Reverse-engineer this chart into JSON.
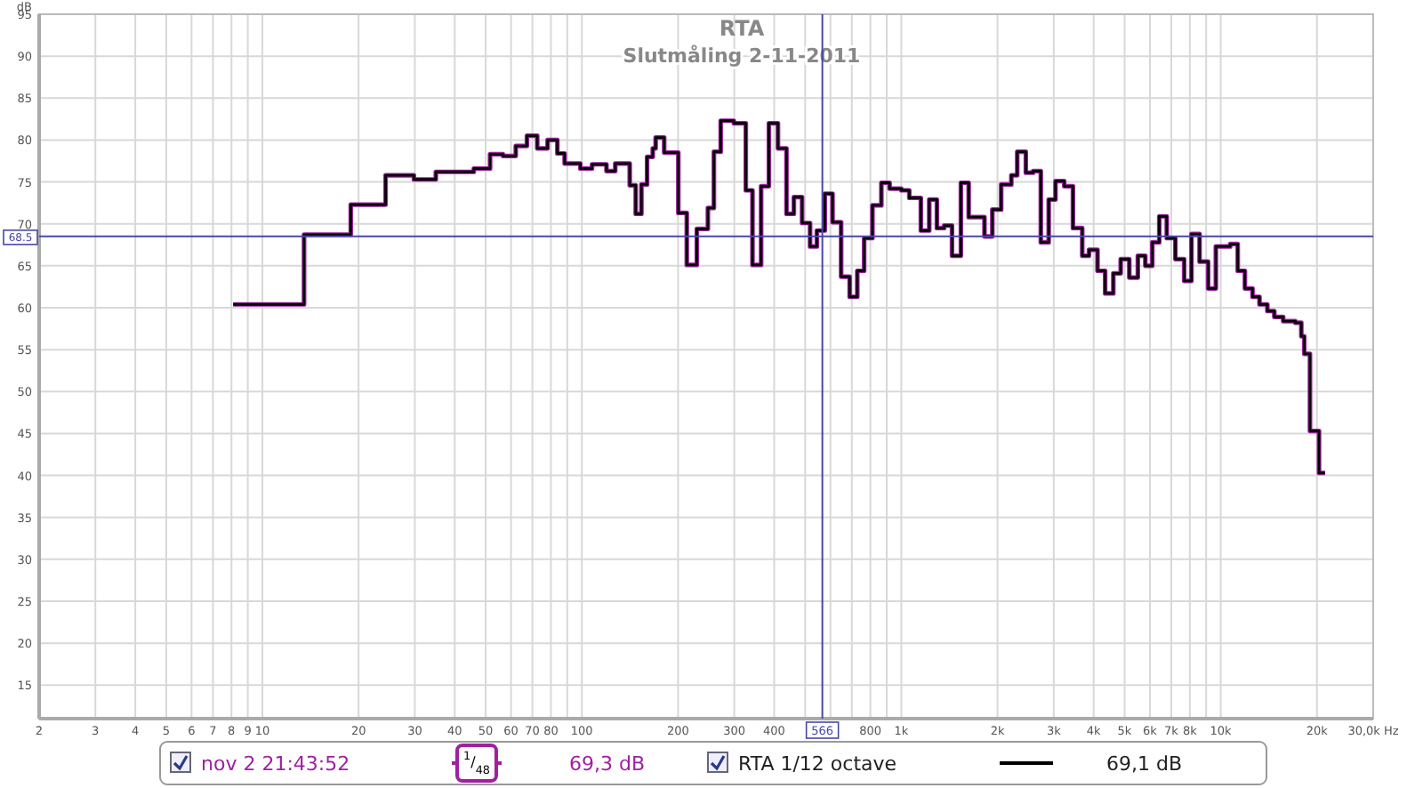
{
  "chart_data": {
    "type": "step",
    "title": "RTA",
    "subtitle": "Slutmåling 2-11-2011",
    "ylabel": "dB",
    "log": "x",
    "grid": true,
    "legend": "bottom",
    "marker": "none",
    "line_style": "solid",
    "xlim": [
      2,
      30000
    ],
    "ylim": [
      11,
      95
    ],
    "xticks": [
      2,
      3,
      4,
      5,
      6,
      7,
      8,
      9,
      10,
      20,
      30,
      40,
      50,
      60,
      70,
      80,
      {
        "value": 90,
        "label": null
      },
      100,
      200,
      300,
      400,
      {
        "value": 500,
        "label": null
      },
      {
        "value": 600,
        "label": null
      },
      {
        "value": 700,
        "label": null
      },
      800,
      {
        "value": 900,
        "label": null
      },
      {
        "value": 1000,
        "label": "1k"
      },
      {
        "value": 2000,
        "label": "2k"
      },
      {
        "value": 3000,
        "label": "3k"
      },
      {
        "value": 4000,
        "label": "4k"
      },
      {
        "value": 5000,
        "label": "5k"
      },
      {
        "value": 6000,
        "label": "6k"
      },
      {
        "value": 7000,
        "label": "7k"
      },
      {
        "value": 8000,
        "label": "8k"
      },
      {
        "value": 9000,
        "label": null
      },
      {
        "value": 10000,
        "label": "10k"
      },
      {
        "value": 20000,
        "label": "20k"
      },
      {
        "value": 30000,
        "label": "30,0k Hz"
      }
    ],
    "yticks": [
      15,
      20,
      25,
      30,
      35,
      40,
      45,
      50,
      55,
      60,
      65,
      70,
      75,
      80,
      85,
      90,
      95
    ],
    "x": [
      8.1,
      13.5,
      18.9,
      24.3,
      29.8,
      34.9,
      45.9,
      51.6,
      56.6,
      62.1,
      67.3,
      72.5,
      78.1,
      83.8,
      88.3,
      98.9,
      107.6,
      119.4,
      127.2,
      141.2,
      147.4,
      153.6,
      160,
      166.7,
      170.2,
      181,
      200.4,
      213,
      229,
      248,
      259,
      272,
      299,
      326,
      342,
      364,
      385,
      411,
      437,
      461,
      489,
      518,
      544,
      576,
      609,
      648,
      689,
      728,
      765,
      812,
      866,
      919,
      1000,
      1059,
      1151,
      1223,
      1292,
      1362,
      1441,
      1536,
      1625,
      1821,
      1927,
      2054,
      2210,
      2306,
      2453,
      2586,
      2733,
      2893,
      3038,
      3235,
      3445,
      3684,
      3868,
      4113,
      4346,
      4609,
      4861,
      5172,
      5500,
      5805,
      6105,
      6418,
      6775,
      7210,
      7679,
      8096,
      8583,
      9127,
      9650,
      10700,
      11300,
      11900,
      12570,
      13220,
      13990,
      14710,
      15680,
      17120,
      17870,
      18250,
      19020,
      20300,
      21200
    ],
    "series": [
      {
        "name": "nov 2 21:43:52",
        "color": "#a020a0",
        "values": [
          60.4,
          68.7,
          72.3,
          75.8,
          75.3,
          76.2,
          76.6,
          78.3,
          78.1,
          79.3,
          80.5,
          79.0,
          80.0,
          78.4,
          77.2,
          76.6,
          77.1,
          76.3,
          77.2,
          74.6,
          71.2,
          74.7,
          78.0,
          79.0,
          80.3,
          78.5,
          71.3,
          65.1,
          69.4,
          71.9,
          78.6,
          82.3,
          82.0,
          74.0,
          65.1,
          74.5,
          82.0,
          79.0,
          71.2,
          73.2,
          70.1,
          67.3,
          69.2,
          73.6,
          70.2,
          63.7,
          61.3,
          64.4,
          68.3,
          72.2,
          74.9,
          74.2,
          74.0,
          73.1,
          69.2,
          72.9,
          69.5,
          69.8,
          66.2,
          74.9,
          70.8,
          68.5,
          71.7,
          74.7,
          75.8,
          78.6,
          76.1,
          76.3,
          67.8,
          72.9,
          75.1,
          74.5,
          69.5,
          66.2,
          66.9,
          64.4,
          61.7,
          64.1,
          65.8,
          63.6,
          66.2,
          65.0,
          67.8,
          70.9,
          68.3,
          65.8,
          63.2,
          68.8,
          65.5,
          62.3,
          67.3,
          67.6,
          64.4,
          62.3,
          61.3,
          60.4,
          59.6,
          58.9,
          58.4,
          58.2,
          56.6,
          54.5,
          45.3,
          40.3,
          40.3
        ]
      },
      {
        "name": "RTA 1/12 octave",
        "color": "#000000",
        "values": [
          60.4,
          68.7,
          72.3,
          75.8,
          75.3,
          76.2,
          76.6,
          78.3,
          78.1,
          79.3,
          80.5,
          79.0,
          80.0,
          78.4,
          77.2,
          76.6,
          77.1,
          76.3,
          77.2,
          74.6,
          71.2,
          74.7,
          78.0,
          79.0,
          80.3,
          78.5,
          71.3,
          65.1,
          69.4,
          71.9,
          78.6,
          82.3,
          82.0,
          74.0,
          65.1,
          74.5,
          82.0,
          79.0,
          71.2,
          73.2,
          70.1,
          67.3,
          69.2,
          73.6,
          70.2,
          63.7,
          61.3,
          64.4,
          68.3,
          72.2,
          74.9,
          74.2,
          74.0,
          73.1,
          69.2,
          72.9,
          69.5,
          69.8,
          66.2,
          74.9,
          70.8,
          68.5,
          71.7,
          74.7,
          75.8,
          78.6,
          76.1,
          76.3,
          67.8,
          72.9,
          75.1,
          74.5,
          69.5,
          66.2,
          66.9,
          64.4,
          61.7,
          64.1,
          65.8,
          63.6,
          66.2,
          65.0,
          67.8,
          70.9,
          68.3,
          65.8,
          63.2,
          68.8,
          65.5,
          62.3,
          67.3,
          67.6,
          64.4,
          62.3,
          61.3,
          60.4,
          59.6,
          58.9,
          58.4,
          58.2,
          56.6,
          54.5,
          45.3,
          40.3,
          40.3
        ]
      }
    ],
    "ref_lines": [
      {
        "axis": "x",
        "value": 566,
        "label": "566",
        "color": "#4848a8"
      },
      {
        "axis": "y",
        "value": 68.5,
        "label": "68.5",
        "color": "#4848a8"
      }
    ],
    "annotations": [
      "$^{1}$/$_{48}$",
      "69,3 dB",
      "69,1 dB"
    ]
  }
}
